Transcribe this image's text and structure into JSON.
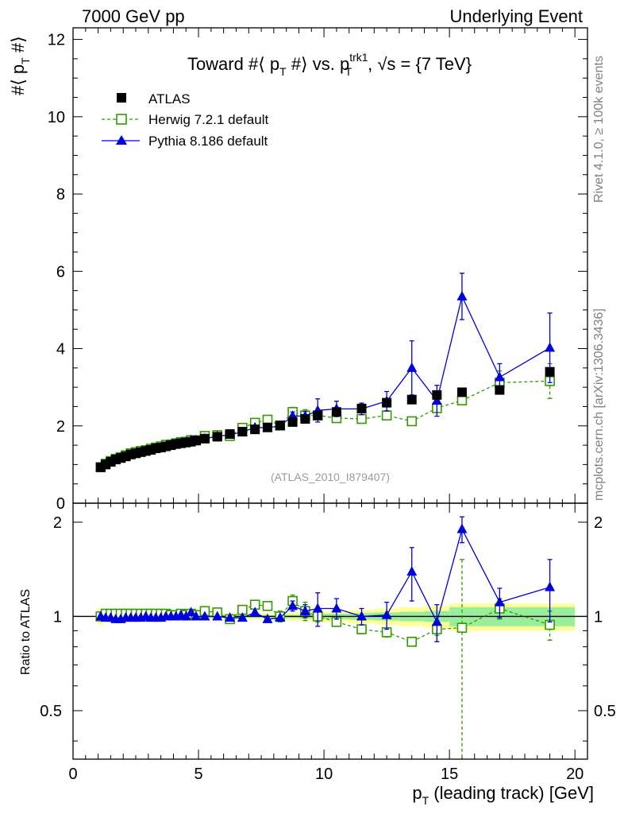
{
  "header": {
    "left": "7000 GeV pp",
    "right": "Underlying Event"
  },
  "side_labels": {
    "rivet": "Rivet 4.1.0, ≥ 100k events",
    "mcplots": "mcplots.cern.ch [arXiv:1306.3436]"
  },
  "watermark": "(ATLAS_2010_I879407)",
  "colors": {
    "atlas": "#000000",
    "herwig": "#339900",
    "pythia": "#0000dd",
    "band_outer": "#ffff99",
    "band_inner": "#99ee99"
  },
  "chart_data": [
    {
      "type": "scatter",
      "title": "Toward #⟨ p_T #⟩ vs. p_T^trk1, √s = {7 TeV}",
      "title_parts": {
        "a": "Toward #⟨ p",
        "a_sub": "T",
        "b": " #⟩ vs. p",
        "b_sup": "trk1",
        "b_sub": "T",
        "c": ", √s = {7 TeV}"
      },
      "ylabel": "#⟨ p_T #⟩",
      "ylabel_parts": {
        "a": "#⟨ p",
        "sub": "T",
        "b": " #⟩"
      },
      "xlim": [
        0,
        20.5
      ],
      "ylim": [
        0,
        12.3
      ],
      "yticks": [
        0,
        2,
        4,
        6,
        8,
        10,
        12
      ],
      "legend": [
        "ATLAS",
        "Herwig 7.2.1 default",
        "Pythia 8.186 default"
      ],
      "legend_position": "top-left",
      "series": [
        {
          "name": "ATLAS",
          "marker": "filled-square",
          "x": [
            1.1,
            1.3,
            1.5,
            1.7,
            1.9,
            2.1,
            2.3,
            2.5,
            2.7,
            2.9,
            3.1,
            3.3,
            3.5,
            3.7,
            3.9,
            4.1,
            4.3,
            4.5,
            4.7,
            4.9,
            5.25,
            5.75,
            6.25,
            6.75,
            7.25,
            7.75,
            8.25,
            8.75,
            9.25,
            9.75,
            10.5,
            11.5,
            12.5,
            13.5,
            14.5,
            15.5,
            17,
            19
          ],
          "y": [
            0.93,
            1.0,
            1.07,
            1.13,
            1.17,
            1.21,
            1.26,
            1.29,
            1.32,
            1.35,
            1.38,
            1.42,
            1.44,
            1.47,
            1.5,
            1.53,
            1.55,
            1.57,
            1.59,
            1.62,
            1.67,
            1.72,
            1.79,
            1.85,
            1.91,
            1.96,
            2.01,
            2.1,
            2.18,
            2.27,
            2.36,
            2.45,
            2.6,
            2.68,
            2.8,
            2.87,
            2.93,
            3.4
          ],
          "err": []
        },
        {
          "name": "Herwig 7.2.1 default",
          "marker": "open-square",
          "line": "dashed",
          "x": [
            1.1,
            1.3,
            1.5,
            1.7,
            1.9,
            2.1,
            2.3,
            2.5,
            2.7,
            2.9,
            3.1,
            3.3,
            3.5,
            3.7,
            3.9,
            4.1,
            4.3,
            4.5,
            4.7,
            4.9,
            5.25,
            5.75,
            6.25,
            6.75,
            7.25,
            7.75,
            8.25,
            8.75,
            9.25,
            9.75,
            10.5,
            11.5,
            12.5,
            13.5,
            14.5,
            15.5,
            17,
            19
          ],
          "y": [
            0.93,
            1.02,
            1.09,
            1.15,
            1.19,
            1.24,
            1.29,
            1.32,
            1.35,
            1.37,
            1.41,
            1.44,
            1.47,
            1.51,
            1.52,
            1.55,
            1.58,
            1.59,
            1.63,
            1.63,
            1.74,
            1.76,
            1.74,
            1.95,
            2.08,
            2.16,
            2.01,
            2.36,
            2.27,
            2.27,
            2.2,
            2.18,
            2.27,
            2.12,
            2.46,
            2.66,
            3.12,
            3.16
          ],
          "err": [
            0,
            0,
            0,
            0,
            0,
            0,
            0,
            0,
            0,
            0,
            0,
            0,
            0,
            0,
            0,
            0,
            0,
            0,
            0,
            0,
            0,
            0,
            0,
            0,
            0.05,
            0.07,
            0.1,
            0.12,
            0.15,
            0.1,
            0.08,
            0.07,
            0.08,
            0.06,
            0.1,
            0.1,
            0.3,
            0.45
          ]
        },
        {
          "name": "Pythia 8.186 default",
          "marker": "filled-triangle",
          "line": "solid",
          "x": [
            1.1,
            1.3,
            1.5,
            1.7,
            1.9,
            2.1,
            2.3,
            2.5,
            2.7,
            2.9,
            3.1,
            3.3,
            3.5,
            3.7,
            3.9,
            4.1,
            4.3,
            4.5,
            4.7,
            4.9,
            5.25,
            5.75,
            6.25,
            6.75,
            7.25,
            7.75,
            8.25,
            8.75,
            9.25,
            9.75,
            10.5,
            11.5,
            12.5,
            13.5,
            14.5,
            15.5,
            17,
            19
          ],
          "y": [
            0.93,
            1.0,
            1.06,
            1.11,
            1.15,
            1.2,
            1.25,
            1.28,
            1.31,
            1.35,
            1.37,
            1.41,
            1.43,
            1.47,
            1.5,
            1.53,
            1.56,
            1.57,
            1.63,
            1.63,
            1.67,
            1.73,
            1.77,
            1.84,
            1.96,
            1.95,
            2.0,
            2.26,
            2.25,
            2.4,
            2.44,
            2.44,
            2.64,
            3.5,
            2.65,
            5.35,
            3.26,
            4.02
          ],
          "err": [
            0,
            0,
            0,
            0,
            0,
            0,
            0,
            0,
            0,
            0,
            0,
            0,
            0,
            0,
            0,
            0,
            0,
            0,
            0,
            0,
            0,
            0,
            0,
            0,
            0,
            0,
            0,
            0.1,
            0.12,
            0.3,
            0.2,
            0.15,
            0.25,
            0.7,
            0.4,
            0.6,
            0.35,
            0.9
          ]
        }
      ]
    },
    {
      "type": "line",
      "ylabel": "Ratio to ATLAS",
      "xlabel": "p_T (leading track) [GeV]",
      "xlabel_parts": {
        "a": "p",
        "sub": "T",
        "b": " (leading track) [GeV]"
      },
      "xlim": [
        0,
        20.5
      ],
      "ylim": [
        0.35,
        2.3
      ],
      "xticks": [
        0,
        5,
        10,
        15,
        20
      ],
      "yticks": [
        0.5,
        1,
        2
      ],
      "ytick_labels": [
        "0.5",
        "1",
        "2"
      ],
      "reference_line": 1,
      "atlas_uncertainty": {
        "x_edges": [
          1.0,
          1.2,
          1.4,
          1.6,
          1.8,
          2.0,
          2.2,
          2.4,
          2.6,
          2.8,
          3.0,
          3.2,
          3.4,
          3.6,
          3.8,
          4.0,
          4.2,
          4.4,
          4.6,
          4.8,
          5.0,
          5.5,
          6.0,
          6.5,
          7.0,
          7.5,
          8.0,
          8.5,
          9.0,
          9.5,
          10.0,
          11.0,
          12.0,
          13.0,
          14.0,
          15.0,
          16.0,
          18.0,
          20.0
        ],
        "outer": [
          0.06,
          0.04,
          0.03,
          0.025,
          0.025,
          0.02,
          0.02,
          0.02,
          0.02,
          0.02,
          0.02,
          0.02,
          0.02,
          0.02,
          0.02,
          0.02,
          0.02,
          0.02,
          0.02,
          0.02,
          0.02,
          0.02,
          0.02,
          0.02,
          0.02,
          0.025,
          0.025,
          0.03,
          0.03,
          0.04,
          0.04,
          0.05,
          0.06,
          0.07,
          0.08,
          0.1,
          0.1,
          0.1
        ],
        "inner": [
          0.02,
          0.015,
          0.01,
          0.01,
          0.01,
          0.01,
          0.01,
          0.01,
          0.01,
          0.01,
          0.01,
          0.01,
          0.01,
          0.01,
          0.01,
          0.01,
          0.01,
          0.01,
          0.01,
          0.01,
          0.01,
          0.01,
          0.01,
          0.01,
          0.01,
          0.01,
          0.012,
          0.012,
          0.015,
          0.02,
          0.02,
          0.025,
          0.03,
          0.035,
          0.04,
          0.07,
          0.07,
          0.07
        ]
      },
      "series": [
        {
          "name": "Herwig 7.2.1 default",
          "marker": "open-square",
          "line": "dashed",
          "x": [
            1.1,
            1.3,
            1.5,
            1.7,
            1.9,
            2.1,
            2.3,
            2.5,
            2.7,
            2.9,
            3.1,
            3.3,
            3.5,
            3.7,
            3.9,
            4.1,
            4.3,
            4.5,
            4.7,
            4.9,
            5.25,
            5.75,
            6.25,
            6.75,
            7.25,
            7.75,
            8.25,
            8.75,
            9.25,
            9.75,
            10.5,
            11.5,
            12.5,
            13.5,
            14.5,
            15.5,
            17,
            19
          ],
          "y": [
            1.0,
            1.02,
            1.02,
            1.02,
            1.02,
            1.02,
            1.02,
            1.02,
            1.02,
            1.02,
            1.02,
            1.02,
            1.02,
            1.02,
            1.01,
            1.01,
            1.02,
            1.01,
            1.02,
            1.01,
            1.04,
            1.03,
            0.98,
            1.05,
            1.09,
            1.08,
            1.0,
            1.12,
            1.04,
            1.0,
            0.96,
            0.91,
            0.89,
            0.83,
            0.91,
            0.92,
            1.06,
            0.94
          ],
          "err": [
            0,
            0,
            0,
            0,
            0,
            0,
            0,
            0,
            0,
            0,
            0,
            0,
            0,
            0,
            0,
            0,
            0,
            0,
            0,
            0,
            0,
            0,
            0,
            0,
            0.02,
            0.03,
            0.04,
            0.05,
            0.07,
            0.04,
            0.03,
            0.03,
            0.03,
            0.02,
            0.04,
            0.6,
            0.08,
            0.1
          ]
        },
        {
          "name": "Pythia 8.186 default",
          "marker": "filled-triangle",
          "line": "solid",
          "x": [
            1.1,
            1.3,
            1.5,
            1.7,
            1.9,
            2.1,
            2.3,
            2.5,
            2.7,
            2.9,
            3.1,
            3.3,
            3.5,
            3.7,
            3.9,
            4.1,
            4.3,
            4.5,
            4.7,
            4.9,
            5.25,
            5.75,
            6.25,
            6.75,
            7.25,
            7.75,
            8.25,
            8.75,
            9.25,
            9.75,
            10.5,
            11.5,
            12.5,
            13.5,
            14.5,
            15.5,
            17,
            19
          ],
          "y": [
            1.0,
            0.99,
            0.99,
            0.98,
            0.98,
            0.99,
            0.99,
            0.99,
            0.99,
            1.0,
            0.99,
            0.99,
            0.99,
            1.0,
            1.0,
            1.0,
            1.01,
            1.0,
            1.03,
            1.0,
            1.0,
            1.0,
            0.99,
            0.99,
            1.03,
            0.98,
            0.99,
            1.08,
            1.04,
            1.06,
            1.06,
            1.0,
            1.01,
            1.39,
            0.96,
            1.9,
            1.11,
            1.24
          ],
          "err": [
            0,
            0,
            0,
            0,
            0,
            0,
            0,
            0,
            0,
            0,
            0,
            0,
            0,
            0,
            0,
            0,
            0,
            0,
            0,
            0,
            0,
            0,
            0,
            0,
            0,
            0,
            0,
            0.04,
            0.05,
            0.13,
            0.08,
            0.06,
            0.1,
            0.27,
            0.13,
            0.18,
            0.12,
            0.28
          ]
        }
      ]
    }
  ]
}
